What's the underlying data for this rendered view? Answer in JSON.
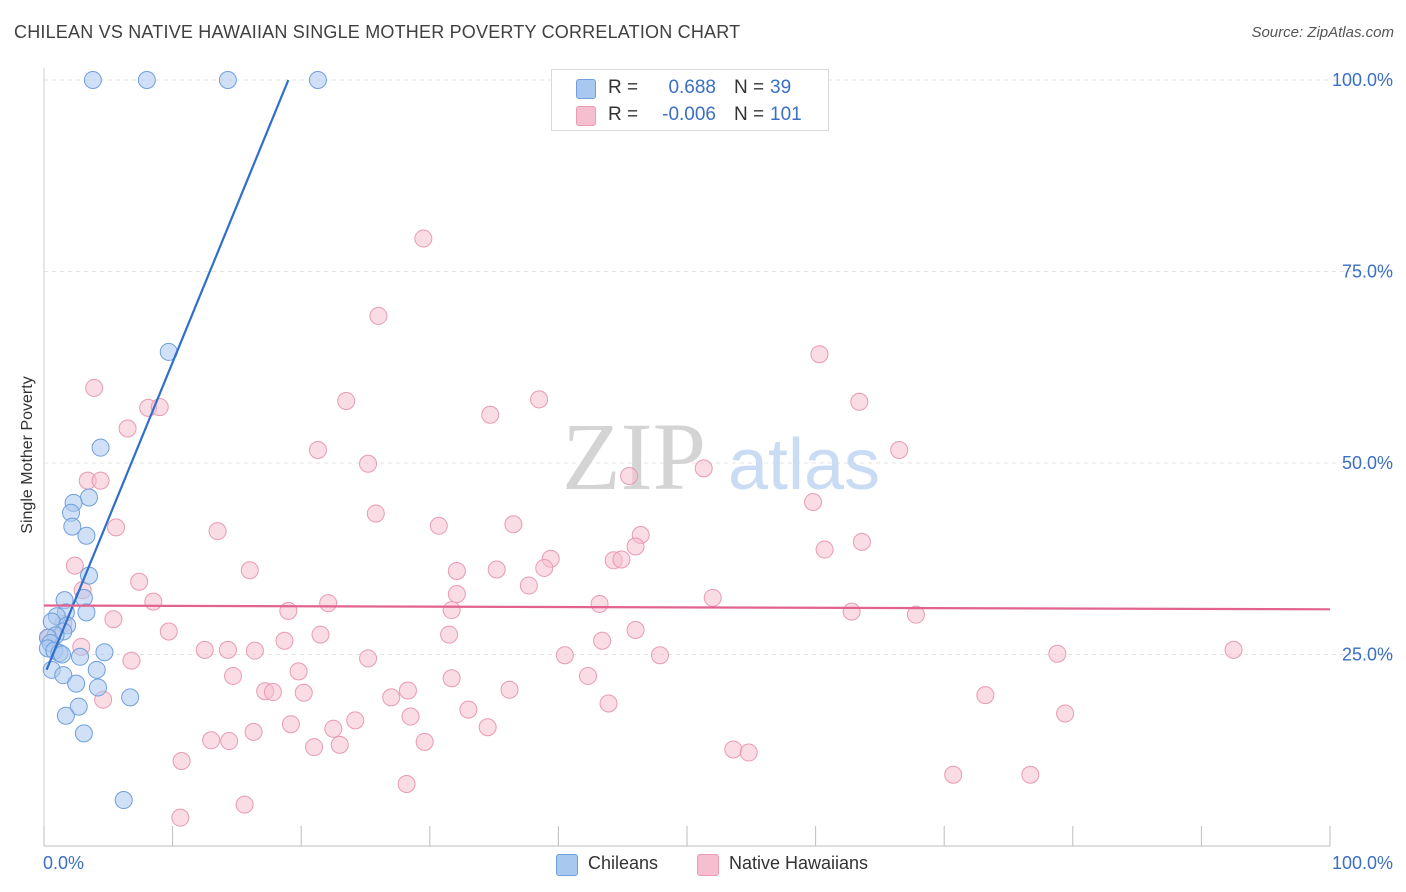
{
  "header": {
    "title": "CHILEAN VS NATIVE HAWAIIAN SINGLE MOTHER POVERTY CORRELATION CHART",
    "source": "Source: ZipAtlas.com"
  },
  "legend": {
    "rows": [
      {
        "r_label": "R =",
        "r_value": "0.688",
        "n_label": "N =",
        "n_value": "39"
      },
      {
        "r_label": "R =",
        "r_value": "-0.006",
        "n_label": "N =",
        "n_value": "101"
      }
    ],
    "bottom": [
      {
        "label": "Chileans"
      },
      {
        "label": "Native Hawaiians"
      }
    ]
  },
  "watermark": {
    "part1": "ZIP",
    "part2": "atlas"
  },
  "colors": {
    "chileans_fill": "#a9c8f0",
    "chileans_stroke": "#6f9fdc",
    "chileans_line": "#2f6fcc",
    "hawaiians_fill": "#f6bfd0",
    "hawaiians_stroke": "#e99ab4",
    "hawaiians_line": "#e2638f",
    "axis_text": "#3a6fc4",
    "grid": "#e3e3e3"
  },
  "chart_data": {
    "type": "scatter",
    "title": "CHILEAN VS NATIVE HAWAIIAN SINGLE MOTHER POVERTY CORRELATION CHART",
    "xlabel": "",
    "ylabel": "Single Mother Poverty",
    "xlim": [
      0,
      100
    ],
    "ylim": [
      0,
      100
    ],
    "x_tick_labels": [
      "0.0%",
      "100.0%"
    ],
    "y_tick_labels": [
      "25.0%",
      "50.0%",
      "75.0%",
      "100.0%"
    ],
    "y_ticks": [
      25,
      50,
      75,
      100
    ],
    "grid": true,
    "series": [
      {
        "name": "Chileans",
        "r": 0.688,
        "n": 39,
        "trend": {
          "x": [
            0.2,
            19.0
          ],
          "y": [
            23.0,
            100.0
          ]
        },
        "points": [
          [
            3.8,
            100
          ],
          [
            8.0,
            100
          ],
          [
            14.3,
            100
          ],
          [
            21.3,
            100
          ],
          [
            9.7,
            64.5
          ],
          [
            4.4,
            52.0
          ],
          [
            3.5,
            45.5
          ],
          [
            2.3,
            44.8
          ],
          [
            2.1,
            43.5
          ],
          [
            2.2,
            41.7
          ],
          [
            3.3,
            40.5
          ],
          [
            3.5,
            35.3
          ],
          [
            1.6,
            32.1
          ],
          [
            3.1,
            32.4
          ],
          [
            1.7,
            30.5
          ],
          [
            3.3,
            30.5
          ],
          [
            1.0,
            30.0
          ],
          [
            0.6,
            29.3
          ],
          [
            1.8,
            28.8
          ],
          [
            1.5,
            28.0
          ],
          [
            0.9,
            27.5
          ],
          [
            0.3,
            27.2
          ],
          [
            0.5,
            26.5
          ],
          [
            0.3,
            25.8
          ],
          [
            0.8,
            25.5
          ],
          [
            1.2,
            25.2
          ],
          [
            1.4,
            25.0
          ],
          [
            4.7,
            25.3
          ],
          [
            2.8,
            24.7
          ],
          [
            0.6,
            23.0
          ],
          [
            4.1,
            23.0
          ],
          [
            1.5,
            22.3
          ],
          [
            2.5,
            21.2
          ],
          [
            4.2,
            20.7
          ],
          [
            6.7,
            19.4
          ],
          [
            2.7,
            18.2
          ],
          [
            1.7,
            17.0
          ],
          [
            3.1,
            14.7
          ],
          [
            6.2,
            6.0
          ]
        ]
      },
      {
        "name": "Native Hawaiians",
        "r": -0.006,
        "n": 101,
        "trend": {
          "x": [
            0,
            100
          ],
          "y": [
            31.4,
            30.9
          ]
        },
        "points": [
          [
            29.5,
            79.3
          ],
          [
            26.0,
            69.2
          ],
          [
            60.3,
            64.2
          ],
          [
            3.9,
            59.8
          ],
          [
            23.5,
            58.1
          ],
          [
            38.5,
            58.3
          ],
          [
            63.4,
            58.0
          ],
          [
            8.1,
            57.2
          ],
          [
            9.0,
            57.3
          ],
          [
            34.7,
            56.3
          ],
          [
            6.5,
            54.5
          ],
          [
            66.5,
            51.7
          ],
          [
            21.3,
            51.7
          ],
          [
            25.2,
            49.9
          ],
          [
            51.3,
            49.3
          ],
          [
            45.5,
            48.3
          ],
          [
            3.4,
            47.7
          ],
          [
            4.4,
            47.7
          ],
          [
            59.8,
            44.9
          ],
          [
            25.8,
            43.4
          ],
          [
            36.5,
            42.0
          ],
          [
            30.7,
            41.8
          ],
          [
            5.6,
            41.6
          ],
          [
            13.5,
            41.1
          ],
          [
            46.4,
            40.6
          ],
          [
            60.7,
            38.7
          ],
          [
            63.6,
            39.7
          ],
          [
            46.0,
            39.1
          ],
          [
            39.4,
            37.5
          ],
          [
            44.3,
            37.3
          ],
          [
            44.9,
            37.4
          ],
          [
            2.4,
            36.6
          ],
          [
            38.9,
            36.3
          ],
          [
            16.0,
            36.0
          ],
          [
            32.1,
            35.9
          ],
          [
            35.2,
            36.1
          ],
          [
            7.4,
            34.5
          ],
          [
            37.7,
            34.0
          ],
          [
            3.0,
            33.4
          ],
          [
            32.1,
            32.9
          ],
          [
            52.0,
            32.4
          ],
          [
            8.5,
            31.9
          ],
          [
            22.1,
            31.7
          ],
          [
            43.2,
            31.6
          ],
          [
            19.0,
            30.7
          ],
          [
            62.8,
            30.6
          ],
          [
            67.8,
            30.2
          ],
          [
            1.5,
            29.0
          ],
          [
            5.4,
            29.6
          ],
          [
            9.7,
            28.0
          ],
          [
            46.0,
            28.2
          ],
          [
            21.5,
            27.6
          ],
          [
            31.5,
            27.6
          ],
          [
            0.4,
            27.2
          ],
          [
            18.7,
            26.8
          ],
          [
            43.4,
            26.8
          ],
          [
            2.9,
            26.0
          ],
          [
            31.7,
            30.8
          ],
          [
            12.5,
            25.6
          ],
          [
            14.3,
            25.6
          ],
          [
            16.4,
            25.5
          ],
          [
            40.5,
            24.9
          ],
          [
            47.9,
            24.9
          ],
          [
            78.8,
            25.1
          ],
          [
            92.5,
            25.6
          ],
          [
            6.8,
            24.2
          ],
          [
            25.2,
            24.5
          ],
          [
            19.8,
            22.8
          ],
          [
            14.7,
            22.2
          ],
          [
            31.7,
            21.9
          ],
          [
            42.3,
            22.2
          ],
          [
            17.2,
            20.2
          ],
          [
            17.8,
            20.1
          ],
          [
            20.2,
            20.0
          ],
          [
            28.3,
            20.3
          ],
          [
            36.2,
            20.4
          ],
          [
            27.0,
            19.4
          ],
          [
            4.6,
            19.1
          ],
          [
            73.2,
            19.7
          ],
          [
            43.9,
            18.6
          ],
          [
            33.0,
            17.8
          ],
          [
            79.4,
            17.3
          ],
          [
            28.5,
            16.9
          ],
          [
            24.2,
            16.4
          ],
          [
            19.2,
            15.9
          ],
          [
            34.5,
            15.5
          ],
          [
            22.5,
            15.3
          ],
          [
            16.3,
            14.9
          ],
          [
            13.0,
            13.8
          ],
          [
            14.4,
            13.7
          ],
          [
            29.6,
            13.6
          ],
          [
            23.0,
            13.2
          ],
          [
            21.0,
            12.9
          ],
          [
            53.6,
            12.6
          ],
          [
            54.8,
            12.2
          ],
          [
            10.7,
            11.1
          ],
          [
            70.7,
            9.3
          ],
          [
            76.7,
            9.3
          ],
          [
            28.2,
            8.1
          ],
          [
            15.6,
            5.4
          ],
          [
            10.6,
            3.7
          ]
        ]
      }
    ]
  }
}
